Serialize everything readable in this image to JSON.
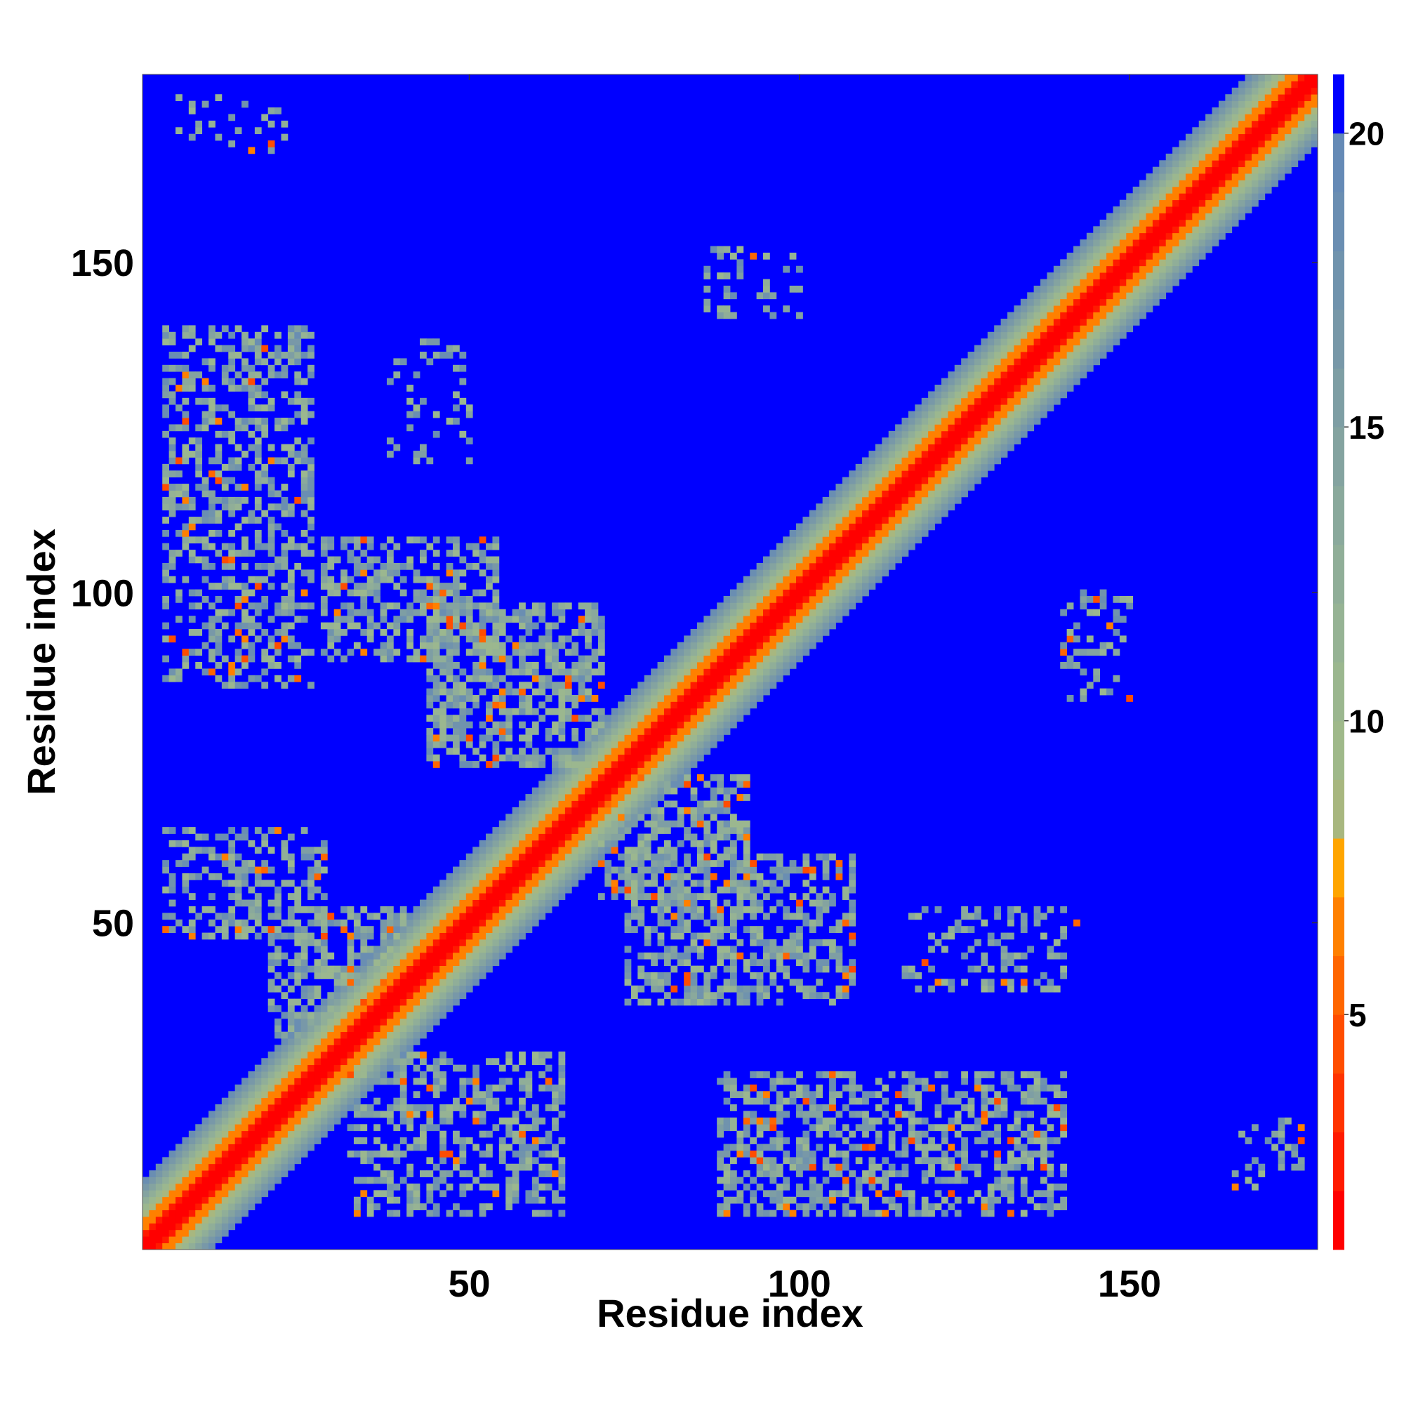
{
  "chart_data": {
    "type": "heatmap",
    "title": "",
    "xlabel": "Residue index",
    "ylabel": "Residue index",
    "n_residues": 178,
    "xlim": [
      1,
      178
    ],
    "ylim": [
      1,
      178
    ],
    "x_ticks": [
      50,
      100,
      150
    ],
    "y_ticks": [
      50,
      100,
      150
    ],
    "colorbar": {
      "ticks": [
        5,
        10,
        15,
        20
      ],
      "range": [
        1,
        21
      ],
      "levels": [
        {
          "max": 2,
          "color": "#ff0000"
        },
        {
          "max": 3,
          "color": "#ff1a00"
        },
        {
          "max": 4,
          "color": "#ff3300"
        },
        {
          "max": 5,
          "color": "#ff4d00"
        },
        {
          "max": 6,
          "color": "#ff6600"
        },
        {
          "max": 7,
          "color": "#ff8000"
        },
        {
          "max": 8,
          "color": "#ffa500"
        },
        {
          "max": 9,
          "color": "#a8b77f"
        },
        {
          "max": 10,
          "color": "#9fb98a"
        },
        {
          "max": 11,
          "color": "#9bb78f"
        },
        {
          "max": 12,
          "color": "#96b394"
        },
        {
          "max": 13,
          "color": "#90ae98"
        },
        {
          "max": 14,
          "color": "#8aa99c"
        },
        {
          "max": 15,
          "color": "#84a3a0"
        },
        {
          "max": 16,
          "color": "#7e9ea4"
        },
        {
          "max": 17,
          "color": "#7898a8"
        },
        {
          "max": 18,
          "color": "#7093ad"
        },
        {
          "max": 19,
          "color": "#6a8eb2"
        },
        {
          "max": 20,
          "color": "#658ab6"
        },
        {
          "max": 21,
          "color": "#0000ff"
        }
      ]
    },
    "diagonal_band": {
      "red_halfwidth": 2,
      "orange_halfwidth": 4,
      "green_halfwidth": 10
    },
    "contact_regions": [
      {
        "x": [
          4,
          26
        ],
        "y": [
          86,
          140
        ],
        "density": 0.45
      },
      {
        "x": [
          38,
          50
        ],
        "y": [
          120,
          138
        ],
        "density": 0.22
      },
      {
        "x": [
          4,
          28
        ],
        "y": [
          48,
          64
        ],
        "density": 0.4
      },
      {
        "x": [
          20,
          40
        ],
        "y": [
          33,
          52
        ],
        "density": 0.5
      },
      {
        "x": [
          28,
          54
        ],
        "y": [
          90,
          108
        ],
        "density": 0.5
      },
      {
        "x": [
          44,
          70
        ],
        "y": [
          74,
          98
        ],
        "density": 0.6
      },
      {
        "x": [
          70,
          92
        ],
        "y": [
          54,
          72
        ],
        "density": 0.6
      },
      {
        "x": [
          74,
          108
        ],
        "y": [
          38,
          60
        ],
        "density": 0.5
      },
      {
        "x": [
          32,
          64
        ],
        "y": [
          6,
          30
        ],
        "density": 0.45
      },
      {
        "x": [
          88,
          140
        ],
        "y": [
          6,
          27
        ],
        "density": 0.5
      },
      {
        "x": [
          116,
          142
        ],
        "y": [
          40,
          52
        ],
        "density": 0.25
      },
      {
        "x": [
          140,
          150
        ],
        "y": [
          84,
          100
        ],
        "density": 0.25
      },
      {
        "x": [
          86,
          100
        ],
        "y": [
          142,
          152
        ],
        "density": 0.22
      },
      {
        "x": [
          6,
          22
        ],
        "y": [
          167,
          175
        ],
        "density": 0.2
      },
      {
        "x": [
          166,
          176
        ],
        "y": [
          10,
          20
        ],
        "density": 0.22
      }
    ]
  }
}
